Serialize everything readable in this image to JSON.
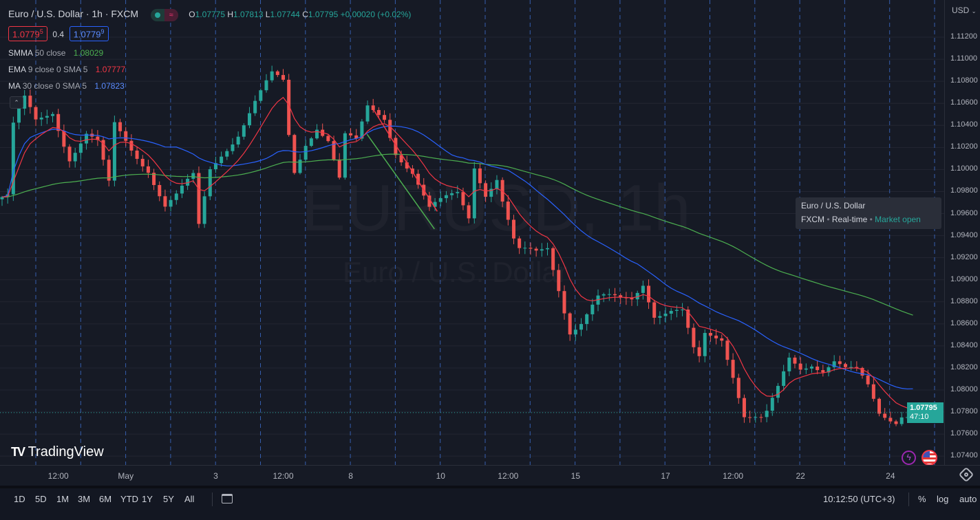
{
  "header": {
    "title": "Euro / U.S. Dollar · 1h · FXCM",
    "ohlc": {
      "o_label": "O",
      "o": "1.07775",
      "h_label": "H",
      "h": "1.07813",
      "l_label": "L",
      "l": "1.07744",
      "c_label": "C",
      "c": "1.07795",
      "change": "+0.00020 (+0.02%)"
    }
  },
  "quote": {
    "bid": "1.0779",
    "bid_sup": "5",
    "spread": "0.4",
    "ask": "1.0779",
    "ask_sup": "9"
  },
  "indicators": [
    {
      "name": "SMMA",
      "params": "50 close",
      "value": "1.08029",
      "color": "#4caf50"
    },
    {
      "name": "EMA",
      "params": "9 close 0 SMA 5",
      "value": "1.07777",
      "color": "#f23645"
    },
    {
      "name": "MA",
      "params": "30 close 0 SMA 5",
      "value": "1.07823",
      "color": "#2962ff"
    }
  ],
  "watermark": {
    "symbol": "EURUSD, 1h",
    "description": "Euro / U.S. Dollar"
  },
  "tooltip": {
    "title": "Euro / U.S. Dollar",
    "exchange": "FXCM",
    "feed": "Real-time",
    "status": "Market open"
  },
  "price_axis": {
    "currency": "USD",
    "ticks": [
      "1.11200",
      "1.11000",
      "1.10800",
      "1.10600",
      "1.10400",
      "1.10200",
      "1.10000",
      "1.09800",
      "1.09600",
      "1.09400",
      "1.09200",
      "1.09000",
      "1.08800",
      "1.08600",
      "1.08400",
      "1.08200",
      "1.08000",
      "1.07800",
      "1.07600",
      "1.07400"
    ],
    "last_price": "1.07795",
    "countdown": "47:10"
  },
  "time_axis": [
    {
      "label": "12:00",
      "h": 10
    },
    {
      "label": "May",
      "h": 22
    },
    {
      "label": "3",
      "h": 38
    },
    {
      "label": "12:00",
      "h": 50
    },
    {
      "label": "8",
      "h": 62
    },
    {
      "label": "10",
      "h": 78
    },
    {
      "label": "12:00",
      "h": 90
    },
    {
      "label": "15",
      "h": 102
    },
    {
      "label": "17",
      "h": 118
    },
    {
      "label": "12:00",
      "h": 130
    },
    {
      "label": "22",
      "h": 142
    },
    {
      "label": "24",
      "h": 158
    }
  ],
  "toolbar": {
    "ranges": [
      "1D",
      "5D",
      "1M",
      "3M",
      "6M",
      "YTD",
      "1Y",
      "5Y",
      "All"
    ],
    "clock": "10:12:50 (UTC+3)",
    "percent": "%",
    "log": "log",
    "auto": "auto"
  },
  "logo": "TradingView",
  "colors": {
    "up": "#26a69a",
    "down": "#ef5350",
    "bg": "#161a25",
    "grid": "#232632",
    "vline": "#3d6fd1"
  },
  "chart_data": {
    "type": "candlestick",
    "ylim": [
      1.0732,
      1.1135
    ],
    "hours": 163,
    "waypoints": [
      [
        0,
        1.0975
      ],
      [
        1,
        1.0975
      ],
      [
        2,
        1.1038
      ],
      [
        4,
        1.1061
      ],
      [
        6,
        1.1042
      ],
      [
        9,
        1.1054
      ],
      [
        12,
        1.1013
      ],
      [
        15,
        1.1032
      ],
      [
        17,
        1.1022
      ],
      [
        19,
        1.0984
      ],
      [
        20,
        1.1038
      ],
      [
        23,
        1.1019
      ],
      [
        26,
        1.1003
      ],
      [
        29,
        1.0968
      ],
      [
        31,
        1.0975
      ],
      [
        34,
        1.0991
      ],
      [
        35,
        1.0946
      ],
      [
        37,
        1.1
      ],
      [
        39,
        1.1016
      ],
      [
        42,
        1.1035
      ],
      [
        45,
        1.1061
      ],
      [
        48,
        1.1083
      ],
      [
        50,
        1.1077
      ],
      [
        51,
        1.1029
      ],
      [
        52,
        1.0997
      ],
      [
        54,
        1.1026
      ],
      [
        56,
        1.1042
      ],
      [
        58,
        1.1029
      ],
      [
        60,
        1.0991
      ],
      [
        61,
        1.1029
      ],
      [
        63,
        1.1022
      ],
      [
        65,
        1.1054
      ],
      [
        68,
        1.1048
      ],
      [
        70,
        1.1019
      ],
      [
        73,
        1.0999
      ],
      [
        76,
        1.0962
      ],
      [
        78,
        1.0968
      ],
      [
        81,
        1.0978
      ],
      [
        83,
        1.0959
      ],
      [
        84,
        1.1006
      ],
      [
        86,
        1.0981
      ],
      [
        88,
        1.0993
      ],
      [
        89,
        1.0971
      ],
      [
        91,
        1.0933
      ],
      [
        92,
        1.0923
      ],
      [
        95,
        1.0923
      ],
      [
        97,
        1.093
      ],
      [
        99,
        1.0895
      ],
      [
        101,
        1.0856
      ],
      [
        103,
        1.0862
      ],
      [
        106,
        1.0881
      ],
      [
        110,
        1.0881
      ],
      [
        112,
        1.0884
      ],
      [
        114,
        1.09
      ],
      [
        116,
        1.0871
      ],
      [
        119,
        1.0871
      ],
      [
        121,
        1.0868
      ],
      [
        123,
        1.0833
      ],
      [
        124,
        1.0826
      ],
      [
        125,
        1.0849
      ],
      [
        128,
        1.0849
      ],
      [
        130,
        1.0817
      ],
      [
        132,
        1.0779
      ],
      [
        135,
        1.0772
      ],
      [
        136,
        1.0776
      ],
      [
        138,
        1.0798
      ],
      [
        140,
        1.0827
      ],
      [
        142,
        1.0821
      ],
      [
        144,
        1.0827
      ],
      [
        146,
        1.0821
      ],
      [
        148,
        1.0827
      ],
      [
        150,
        1.0817
      ],
      [
        152,
        1.0814
      ],
      [
        154,
        1.0801
      ],
      [
        156,
        1.0779
      ],
      [
        159,
        1.0775
      ],
      [
        160,
        1.0781
      ],
      [
        162,
        1.07795
      ]
    ],
    "trendlines": [
      {
        "color": "#f23645",
        "from": [
          66.1,
          1.1054
        ],
        "to": [
          77.4,
          1.0962
        ]
      },
      {
        "color": "#4caf50",
        "from": [
          64.9,
          1.1032
        ],
        "to": [
          76.9,
          1.0946
        ]
      }
    ],
    "series": [
      {
        "name": "SMMA 50",
        "type": "smma",
        "period": 50
      },
      {
        "name": "EMA 9",
        "type": "ema",
        "period": 9
      },
      {
        "name": "MA 30",
        "type": "sma",
        "period": 30
      }
    ]
  }
}
